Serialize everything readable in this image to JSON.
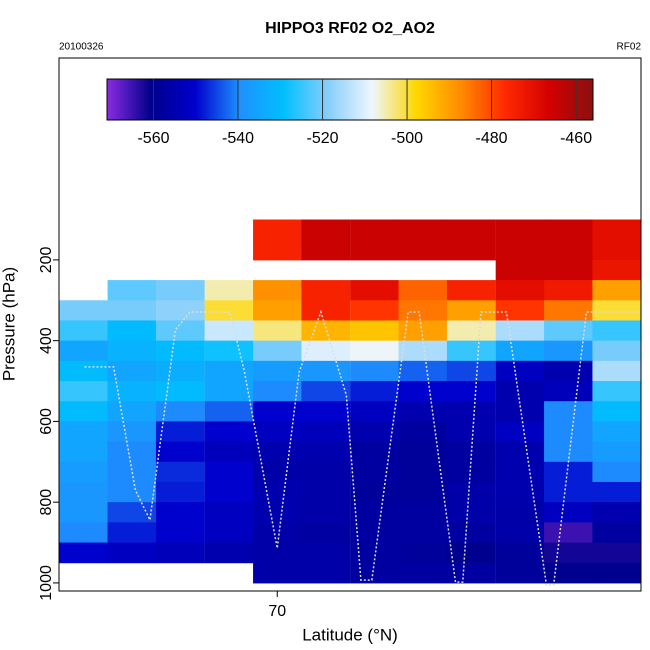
{
  "chart_data": {
    "type": "heatmap",
    "title": "HIPPO3 RF02 O2_AO2",
    "date": "20100326",
    "flight": "RF02",
    "xlabel": "Latitude (°N)",
    "ylabel": "Pressure (hPa)",
    "xlim": [
      64,
      80
    ],
    "xticks": [
      70
    ],
    "ylim": [
      1020,
      -300
    ],
    "yticks": [
      200,
      400,
      600,
      800,
      1000
    ],
    "clim": [
      -571,
      -456
    ],
    "cticks": [
      -560,
      -540,
      -520,
      -500,
      -480,
      -460
    ],
    "colors": [
      "#8a2be2",
      "#00008b",
      "#0000cd",
      "#1e90ff",
      "#00bfff",
      "#87cefa",
      "#eef6ff",
      "#ffd700",
      "#ff8c00",
      "#ff2a00",
      "#d40000",
      "#8b1010"
    ],
    "x": [
      64.67,
      66,
      67.33,
      68.67,
      70,
      71.33,
      72.67,
      74,
      75.33,
      76.67,
      78,
      79.33
    ],
    "y": [
      125,
      175,
      225,
      275,
      325,
      375,
      425,
      475,
      525,
      575,
      625,
      675,
      725,
      775,
      825,
      875,
      925,
      975
    ],
    "z": [
      [
        null,
        null,
        null,
        null,
        -475,
        -465,
        -465,
        -465,
        -465,
        -465,
        -465,
        -470
      ],
      [
        null,
        null,
        null,
        null,
        -475,
        -465,
        -465,
        -465,
        -465,
        -465,
        -465,
        -470
      ],
      [
        null,
        null,
        null,
        null,
        null,
        null,
        null,
        null,
        null,
        -465,
        -465,
        -472
      ],
      [
        null,
        -522,
        -520,
        -505,
        -488,
        -475,
        -470,
        -483,
        -475,
        -470,
        -473,
        -490
      ],
      [
        -520,
        -520,
        -518,
        -500,
        -490,
        -475,
        -478,
        -485,
        -490,
        -478,
        -485,
        -500
      ],
      [
        -525,
        -530,
        -522,
        -512,
        -503,
        -493,
        -495,
        -490,
        -505,
        -515,
        -522,
        -525
      ],
      [
        -535,
        -532,
        -530,
        -528,
        -520,
        -510,
        -508,
        -515,
        -525,
        -535,
        -538,
        -520
      ],
      [
        -530,
        -535,
        -533,
        -535,
        -537,
        -538,
        -540,
        -543,
        -545,
        -552,
        -555,
        -515
      ],
      [
        -525,
        -532,
        -530,
        -535,
        -540,
        -545,
        -548,
        -550,
        -550,
        -555,
        -553,
        -525
      ],
      [
        -530,
        -535,
        -540,
        -543,
        -550,
        -550,
        -552,
        -555,
        -555,
        -555,
        -540,
        -530
      ],
      [
        -535,
        -538,
        -548,
        -550,
        -552,
        -553,
        -555,
        -557,
        -555,
        -552,
        -540,
        -535
      ],
      [
        -535,
        -540,
        -550,
        -553,
        -555,
        -555,
        -557,
        -558,
        -557,
        -555,
        -540,
        -537
      ],
      [
        -537,
        -540,
        -547,
        -550,
        -556,
        -556,
        -557,
        -558,
        -557,
        -555,
        -548,
        -540
      ],
      [
        -538,
        -540,
        -548,
        -550,
        -555,
        -556,
        -558,
        -558,
        -556,
        -555,
        -548,
        -548
      ],
      [
        -538,
        -545,
        -550,
        -552,
        -555,
        -556,
        -557,
        -557,
        -556,
        -556,
        -552,
        -555
      ],
      [
        -540,
        -548,
        -550,
        -552,
        -556,
        -557,
        -557,
        -557,
        -557,
        -556,
        -565,
        -557
      ],
      [
        -550,
        -552,
        -553,
        -555,
        -556,
        -556,
        -557,
        -558,
        -560,
        -558,
        -562,
        -562
      ],
      [
        null,
        null,
        null,
        null,
        -556,
        -556,
        -557,
        -557,
        -557,
        -558,
        -560,
        -560
      ]
    ],
    "track": {
      "color": "#dddddd",
      "x": [
        64.7,
        65.5,
        66.1,
        66.5,
        67.2,
        67.6,
        68.7,
        69.1,
        70.0,
        70.6,
        71.2,
        71.9,
        72.3,
        72.6,
        73.6,
        73.9,
        74.9,
        75.1,
        75.6,
        76.3,
        77.4,
        77.6,
        78.5,
        80.0
      ],
      "values": [
        465,
        465,
        770,
        844,
        373,
        329,
        329,
        478,
        914,
        478,
        329,
        535,
        993,
        993,
        329,
        329,
        998,
        998,
        329,
        329,
        1005,
        1005,
        329,
        329
      ]
    }
  }
}
